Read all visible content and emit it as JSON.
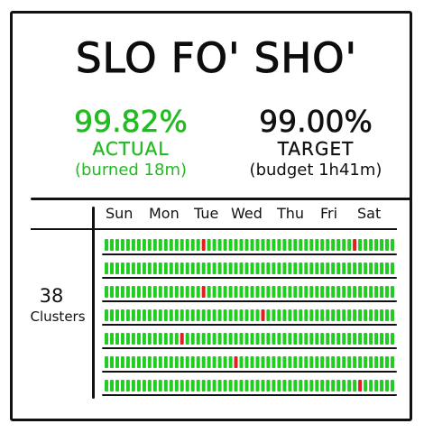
{
  "title": "SLO FO' SHO'",
  "actual": {
    "value": "99.82%",
    "label": "ACTUAL",
    "note": "(burned 18m)"
  },
  "target": {
    "value": "99.00%",
    "label": "TARGET",
    "note": "(budget 1h41m)"
  },
  "days": [
    "Sun",
    "Mon",
    "Tue",
    "Wed",
    "Thu",
    "Fri",
    "Sat"
  ],
  "clusters": {
    "count": "38",
    "label": "Clusters"
  },
  "colors": {
    "ok": "#22cc22",
    "burn": "#dd2222",
    "ink": "#111111"
  },
  "grid": {
    "rows": 7,
    "bars_per_row": 54,
    "red_bars": [
      {
        "row": 0,
        "index": 18
      },
      {
        "row": 0,
        "index": 46
      },
      {
        "row": 2,
        "index": 18
      },
      {
        "row": 3,
        "index": 29
      },
      {
        "row": 4,
        "index": 14
      },
      {
        "row": 5,
        "index": 24
      },
      {
        "row": 6,
        "index": 47
      }
    ]
  }
}
